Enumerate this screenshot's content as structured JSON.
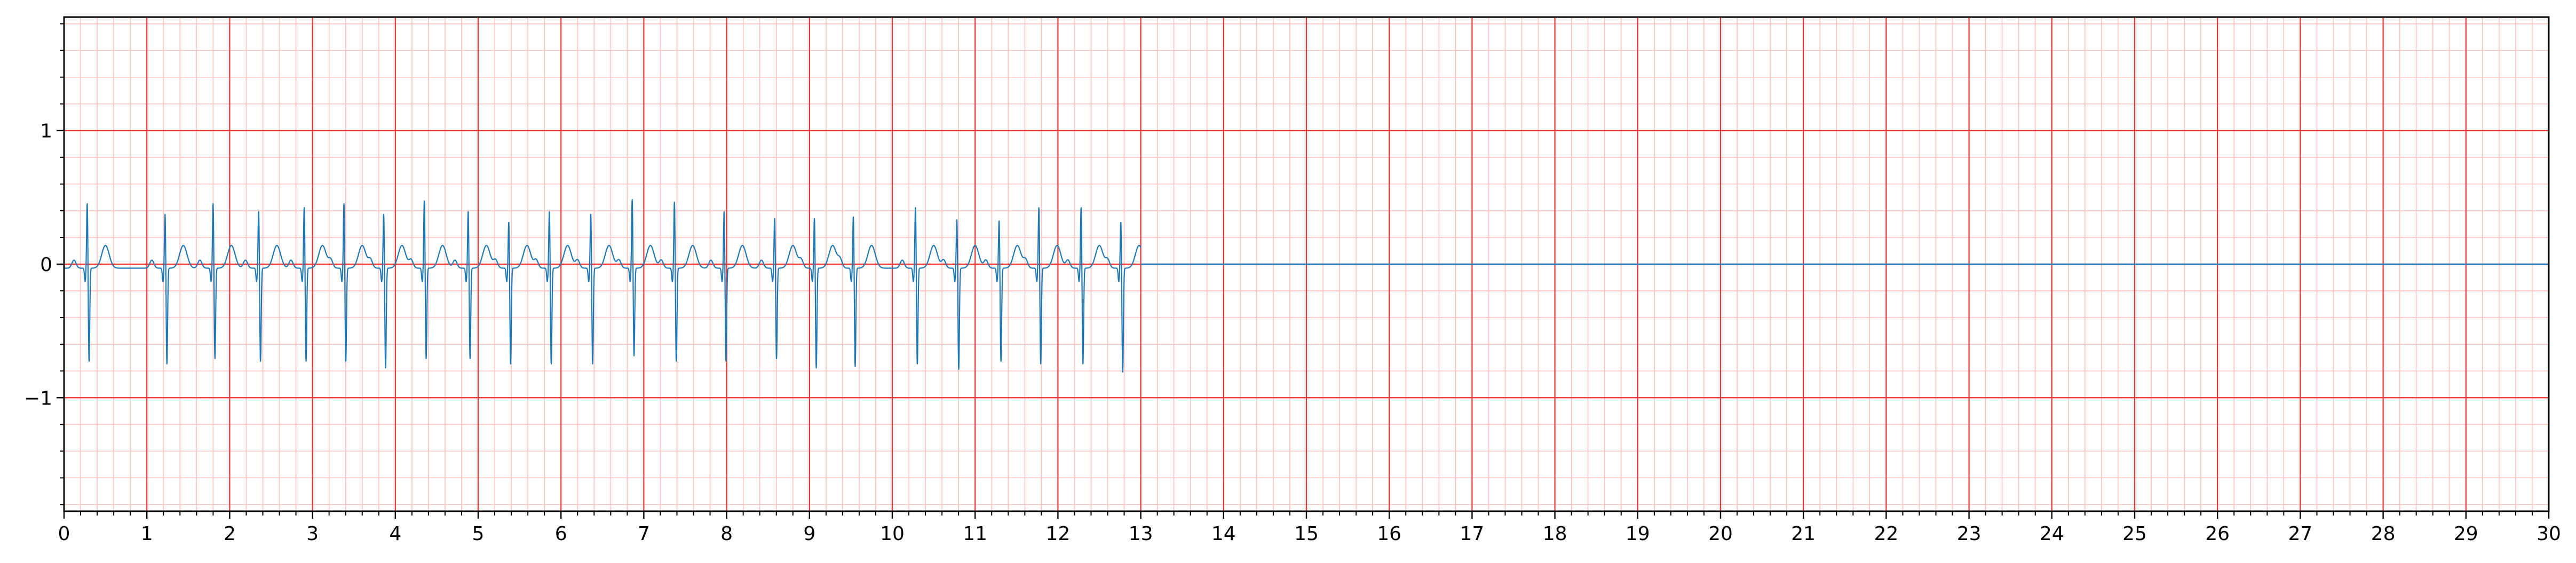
{
  "chart_data": {
    "type": "line",
    "title": "",
    "xlabel": "",
    "ylabel": "",
    "xlim": [
      0,
      30
    ],
    "ylim": [
      -1.85,
      1.85
    ],
    "x_ticks": [
      0,
      1,
      2,
      3,
      4,
      5,
      6,
      7,
      8,
      9,
      10,
      11,
      12,
      13,
      14,
      15,
      16,
      17,
      18,
      19,
      20,
      21,
      22,
      23,
      24,
      25,
      26,
      27,
      28,
      29,
      30
    ],
    "x_tick_labels": [
      "0",
      "1",
      "2",
      "3",
      "4",
      "5",
      "6",
      "7",
      "8",
      "9",
      "10",
      "11",
      "12",
      "13",
      "14",
      "15",
      "16",
      "17",
      "18",
      "19",
      "20",
      "21",
      "22",
      "23",
      "24",
      "25",
      "26",
      "27",
      "28",
      "29",
      "30"
    ],
    "y_ticks": [
      -1,
      0,
      1
    ],
    "y_tick_labels": [
      "−1",
      "0",
      "1"
    ],
    "grid": {
      "major": true,
      "minor": true,
      "major_x_step": 1,
      "minor_x_step": 0.2,
      "major_y_step": 1,
      "minor_y_step": 0.2,
      "major_color": "#ee3333",
      "minor_color": "#ffc0c0"
    },
    "series_color": "#1f77b4",
    "signal_end": 13.0,
    "baseline_after_end": 0,
    "beats": [
      {
        "t": 0.28,
        "r": 0.5,
        "s": -0.7
      },
      {
        "t": 1.22,
        "r": 0.42,
        "s": -0.72
      },
      {
        "t": 1.8,
        "r": 0.5,
        "s": -0.68
      },
      {
        "t": 2.35,
        "r": 0.44,
        "s": -0.7
      },
      {
        "t": 2.9,
        "r": 0.47,
        "s": -0.7
      },
      {
        "t": 3.38,
        "r": 0.5,
        "s": -0.7
      },
      {
        "t": 3.86,
        "r": 0.42,
        "s": -0.75
      },
      {
        "t": 4.35,
        "r": 0.52,
        "s": -0.68
      },
      {
        "t": 4.88,
        "r": 0.44,
        "s": -0.68
      },
      {
        "t": 5.37,
        "r": 0.36,
        "s": -0.72
      },
      {
        "t": 5.86,
        "r": 0.44,
        "s": -0.72
      },
      {
        "t": 6.36,
        "r": 0.42,
        "s": -0.72
      },
      {
        "t": 6.86,
        "r": 0.53,
        "s": -0.66
      },
      {
        "t": 7.37,
        "r": 0.51,
        "s": -0.7
      },
      {
        "t": 7.97,
        "r": 0.44,
        "s": -0.7
      },
      {
        "t": 8.58,
        "r": 0.39,
        "s": -0.68
      },
      {
        "t": 9.06,
        "r": 0.39,
        "s": -0.75
      },
      {
        "t": 9.53,
        "r": 0.4,
        "s": -0.74
      },
      {
        "t": 10.28,
        "r": 0.47,
        "s": -0.72
      },
      {
        "t": 10.78,
        "r": 0.38,
        "s": -0.76
      },
      {
        "t": 11.29,
        "r": 0.37,
        "s": -0.7
      },
      {
        "t": 11.77,
        "r": 0.47,
        "s": -0.72
      },
      {
        "t": 12.28,
        "r": 0.47,
        "s": -0.72
      },
      {
        "t": 12.76,
        "r": 0.36,
        "s": -0.78
      }
    ]
  }
}
